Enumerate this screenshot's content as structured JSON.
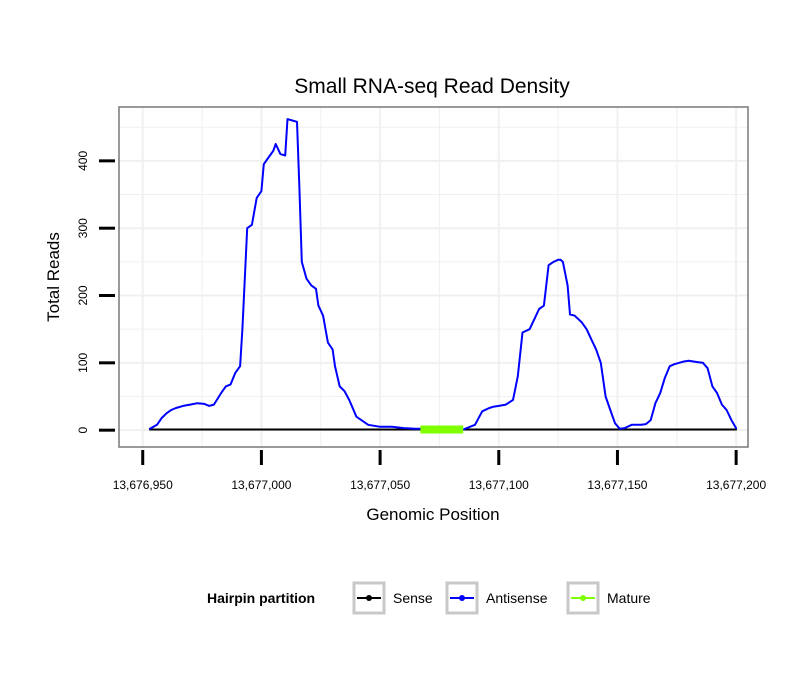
{
  "chart_data": {
    "type": "line",
    "title": "Small RNA-seq Read Density",
    "xlabel": "Genomic Position",
    "ylabel": "Total Reads",
    "xlim": [
      13676940,
      13677205
    ],
    "ylim": [
      -25,
      480
    ],
    "x_ticks": [
      13676950,
      13677000,
      13677050,
      13677100,
      13677150,
      13677200
    ],
    "x_tick_labels": [
      "13,676,950",
      "13,677,000",
      "13,677,050",
      "13,677,100",
      "13,677,150",
      "13,677,200"
    ],
    "y_ticks": [
      0,
      100,
      200,
      300,
      400
    ],
    "y_tick_labels": [
      "0",
      "100",
      "200",
      "300",
      "400"
    ],
    "grid": true,
    "legend": {
      "title": "Hairpin partition",
      "position": "bottom",
      "entries": [
        {
          "name": "Sense",
          "color": "#000000"
        },
        {
          "name": "Antisense",
          "color": "#0000ff"
        },
        {
          "name": "Mature",
          "color": "#7fff00"
        }
      ]
    },
    "series": [
      {
        "name": "Sense",
        "color": "#000000",
        "x": [
          13676953,
          13677200
        ],
        "y": [
          1,
          1
        ]
      },
      {
        "name": "Antisense",
        "color": "#0000ff",
        "x": [
          13676953,
          13676956,
          13676958,
          13676960,
          13676962,
          13676964,
          13676967,
          13676970,
          13676973,
          13676976,
          13676978,
          13676980,
          13676983,
          13676985,
          13676987,
          13676989,
          13676991,
          13676992,
          13676994,
          13676996,
          13676998,
          13677000,
          13677001,
          13677003,
          13677005,
          13677006,
          13677008,
          13677010,
          13677011,
          13677013,
          13677015,
          13677016,
          13677017,
          13677019,
          13677021,
          13677023,
          13677024,
          13677026,
          13677028,
          13677030,
          13677031,
          13677033,
          13677035,
          13677037,
          13677040,
          13677045,
          13677050,
          13677055,
          13677060,
          13677065,
          13677070,
          13677075,
          13677080,
          13677085,
          13677090,
          13677093,
          13677096,
          13677098,
          13677100,
          13677103,
          13677106,
          13677108,
          13677110,
          13677113,
          13677115,
          13677117,
          13677119,
          13677121,
          13677123,
          13677125,
          13677126,
          13677127,
          13677129,
          13677130,
          13677132,
          13677135,
          13677137,
          13677139,
          13677141,
          13677143,
          13677145,
          13677147,
          13677149,
          13677151,
          13677153,
          13677156,
          13677158,
          13677160,
          13677162,
          13677164,
          13677166,
          13677168,
          13677170,
          13677172,
          13677174,
          13677176,
          13677178,
          13677180,
          13677182,
          13677184,
          13677186,
          13677188,
          13677190,
          13677192,
          13677194,
          13677196,
          13677198,
          13677200
        ],
        "y": [
          2,
          8,
          18,
          25,
          30,
          33,
          36,
          38,
          40,
          39,
          36,
          38,
          55,
          65,
          68,
          85,
          95,
          150,
          300,
          305,
          345,
          355,
          395,
          405,
          415,
          425,
          410,
          408,
          462,
          460,
          458,
          360,
          250,
          225,
          215,
          210,
          185,
          170,
          130,
          120,
          95,
          65,
          58,
          45,
          20,
          8,
          5,
          5,
          3,
          2,
          2,
          1,
          2,
          1,
          8,
          28,
          33,
          35,
          36,
          38,
          45,
          80,
          145,
          150,
          165,
          180,
          185,
          245,
          250,
          253,
          253,
          250,
          215,
          172,
          170,
          160,
          150,
          135,
          120,
          100,
          50,
          30,
          10,
          2,
          3,
          8,
          8,
          8,
          9,
          15,
          40,
          55,
          78,
          95,
          98,
          100,
          102,
          103,
          102,
          101,
          100,
          92,
          65,
          55,
          38,
          30,
          15,
          3
        ]
      },
      {
        "name": "Mature",
        "color": "#7fff00",
        "x": [
          13677067,
          13677085
        ],
        "y": [
          1,
          1
        ]
      }
    ]
  }
}
